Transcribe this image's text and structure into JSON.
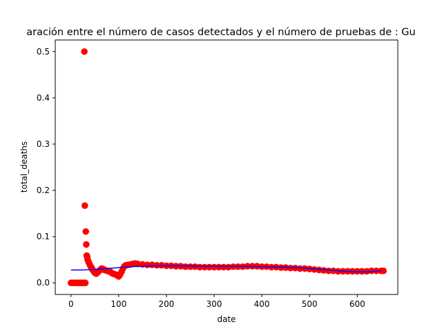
{
  "chart_data": {
    "type": "scatter",
    "title": "aración entre el número de casos detectados y el número de pruebas de : Gu",
    "xlabel": "date",
    "ylabel": "total_deaths",
    "xlim": [
      -33,
      685
    ],
    "ylim": [
      -0.025,
      0.525
    ],
    "xticks": [
      "0",
      "100",
      "200",
      "300",
      "400",
      "500",
      "600"
    ],
    "yticks": [
      "0.0",
      "0.1",
      "0.2",
      "0.3",
      "0.4",
      "0.5"
    ],
    "grid": false,
    "scatter_color": "#ff0000",
    "trend_color": "#0000ff",
    "series": [
      {
        "kind": "scatter",
        "points": [
          [
            0,
            0.0
          ],
          [
            3,
            0.0
          ],
          [
            6,
            0.0
          ],
          [
            9,
            0.0
          ],
          [
            12,
            0.0
          ],
          [
            15,
            0.0
          ],
          [
            18,
            0.0
          ],
          [
            21,
            0.0
          ],
          [
            24,
            0.0
          ],
          [
            27,
            0.0
          ],
          [
            28,
            0.5
          ],
          [
            29,
            0.167
          ],
          [
            30,
            0.0
          ],
          [
            31,
            0.111
          ],
          [
            32,
            0.083
          ],
          [
            33,
            0.059
          ],
          [
            34,
            0.056
          ],
          [
            35,
            0.05
          ],
          [
            37,
            0.045
          ],
          [
            39,
            0.04
          ],
          [
            41,
            0.036
          ],
          [
            43,
            0.033
          ],
          [
            45,
            0.029
          ],
          [
            47,
            0.026
          ],
          [
            49,
            0.023
          ],
          [
            51,
            0.021
          ],
          [
            53,
            0.02
          ],
          [
            55,
            0.022
          ],
          [
            58,
            0.025
          ],
          [
            61,
            0.028
          ],
          [
            64,
            0.031
          ],
          [
            67,
            0.03
          ],
          [
            70,
            0.028
          ],
          [
            73,
            0.027
          ],
          [
            76,
            0.026
          ],
          [
            79,
            0.025
          ],
          [
            82,
            0.024
          ],
          [
            85,
            0.022
          ],
          [
            88,
            0.02
          ],
          [
            91,
            0.019
          ],
          [
            94,
            0.018
          ],
          [
            97,
            0.016
          ],
          [
            100,
            0.014
          ],
          [
            103,
            0.018
          ],
          [
            106,
            0.024
          ],
          [
            109,
            0.031
          ],
          [
            112,
            0.036
          ],
          [
            115,
            0.038
          ],
          [
            120,
            0.039
          ],
          [
            125,
            0.04
          ],
          [
            130,
            0.041
          ],
          [
            135,
            0.042
          ],
          [
            140,
            0.041
          ],
          [
            150,
            0.04
          ],
          [
            160,
            0.039
          ],
          [
            170,
            0.039
          ],
          [
            180,
            0.038
          ],
          [
            190,
            0.038
          ],
          [
            200,
            0.037
          ],
          [
            210,
            0.037
          ],
          [
            220,
            0.036
          ],
          [
            230,
            0.036
          ],
          [
            240,
            0.035
          ],
          [
            250,
            0.035
          ],
          [
            260,
            0.035
          ],
          [
            270,
            0.034
          ],
          [
            280,
            0.034
          ],
          [
            290,
            0.034
          ],
          [
            300,
            0.034
          ],
          [
            310,
            0.034
          ],
          [
            320,
            0.034
          ],
          [
            330,
            0.034
          ],
          [
            340,
            0.035
          ],
          [
            350,
            0.035
          ],
          [
            360,
            0.035
          ],
          [
            370,
            0.036
          ],
          [
            380,
            0.036
          ],
          [
            390,
            0.036
          ],
          [
            400,
            0.035
          ],
          [
            410,
            0.035
          ],
          [
            420,
            0.034
          ],
          [
            430,
            0.034
          ],
          [
            440,
            0.033
          ],
          [
            450,
            0.033
          ],
          [
            460,
            0.032
          ],
          [
            470,
            0.032
          ],
          [
            480,
            0.031
          ],
          [
            490,
            0.031
          ],
          [
            500,
            0.03
          ],
          [
            510,
            0.029
          ],
          [
            520,
            0.028
          ],
          [
            530,
            0.027
          ],
          [
            540,
            0.026
          ],
          [
            550,
            0.026
          ],
          [
            560,
            0.025
          ],
          [
            570,
            0.025
          ],
          [
            580,
            0.025
          ],
          [
            590,
            0.025
          ],
          [
            600,
            0.025
          ],
          [
            610,
            0.025
          ],
          [
            620,
            0.025
          ],
          [
            630,
            0.026
          ],
          [
            640,
            0.026
          ],
          [
            650,
            0.026
          ],
          [
            655,
            0.026
          ]
        ]
      },
      {
        "kind": "line",
        "points": [
          [
            0,
            0.028
          ],
          [
            25,
            0.028
          ],
          [
            50,
            0.029
          ],
          [
            75,
            0.031
          ],
          [
            100,
            0.033
          ],
          [
            125,
            0.035
          ],
          [
            150,
            0.036
          ],
          [
            175,
            0.037
          ],
          [
            200,
            0.037
          ],
          [
            225,
            0.037
          ],
          [
            250,
            0.0365
          ],
          [
            275,
            0.036
          ],
          [
            300,
            0.036
          ],
          [
            325,
            0.0355
          ],
          [
            350,
            0.0355
          ],
          [
            375,
            0.0355
          ],
          [
            400,
            0.035
          ],
          [
            425,
            0.0345
          ],
          [
            450,
            0.034
          ],
          [
            475,
            0.033
          ],
          [
            500,
            0.031
          ],
          [
            525,
            0.029
          ],
          [
            550,
            0.027
          ],
          [
            575,
            0.025
          ],
          [
            600,
            0.024
          ],
          [
            625,
            0.024
          ],
          [
            650,
            0.026
          ]
        ]
      }
    ]
  }
}
